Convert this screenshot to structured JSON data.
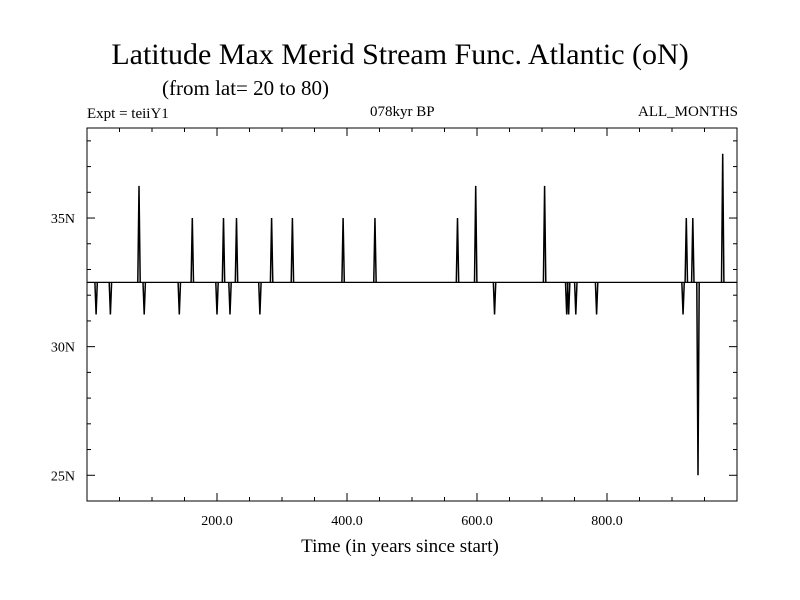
{
  "header": {
    "title": "Latitude Max Merid Stream Func. Atlantic (oN)",
    "subtitle": "(from lat= 20 to 80)",
    "expt": "Expt = teiiY1",
    "period": "078kyr BP",
    "months": "ALL_MONTHS"
  },
  "chart_data": {
    "type": "line",
    "title": "Latitude Max Merid Stream Func. Atlantic (oN)",
    "subtitle": "(from lat= 20 to 80)",
    "xlabel": "Time (in years since start)",
    "ylabel": "",
    "xlim": [
      0,
      1000
    ],
    "ylim": [
      24,
      38.5
    ],
    "x_ticks": [
      200,
      400,
      600,
      800
    ],
    "x_tick_labels": [
      "200.0",
      "400.0",
      "600.0",
      "800.0"
    ],
    "y_ticks": [
      25,
      30,
      35
    ],
    "y_tick_labels": [
      "25N",
      "30N",
      "35N"
    ],
    "baseline": 32.5,
    "spikes": [
      {
        "x": 14,
        "y": 31.25
      },
      {
        "x": 36,
        "y": 31.25
      },
      {
        "x": 80,
        "y": 36.25
      },
      {
        "x": 88,
        "y": 31.25
      },
      {
        "x": 142,
        "y": 31.25
      },
      {
        "x": 162,
        "y": 35
      },
      {
        "x": 200,
        "y": 31.25
      },
      {
        "x": 210,
        "y": 35
      },
      {
        "x": 220,
        "y": 31.25
      },
      {
        "x": 230,
        "y": 35
      },
      {
        "x": 266,
        "y": 31.25
      },
      {
        "x": 284,
        "y": 35
      },
      {
        "x": 316,
        "y": 35
      },
      {
        "x": 394,
        "y": 35
      },
      {
        "x": 443,
        "y": 35
      },
      {
        "x": 570,
        "y": 35
      },
      {
        "x": 598,
        "y": 36.25
      },
      {
        "x": 627,
        "y": 31.25
      },
      {
        "x": 704,
        "y": 36.25
      },
      {
        "x": 738,
        "y": 31.25
      },
      {
        "x": 741,
        "y": 31.25
      },
      {
        "x": 752,
        "y": 31.25
      },
      {
        "x": 784,
        "y": 31.25
      },
      {
        "x": 917,
        "y": 31.25
      },
      {
        "x": 922,
        "y": 35
      },
      {
        "x": 932,
        "y": 35
      },
      {
        "x": 940,
        "y": 25
      },
      {
        "x": 978,
        "y": 37.5
      }
    ],
    "grid": false,
    "legend": "none",
    "colors": {
      "line": "#000000",
      "axes": "#000000"
    }
  },
  "axes": {
    "xlabel": "Time (in years since start)"
  }
}
